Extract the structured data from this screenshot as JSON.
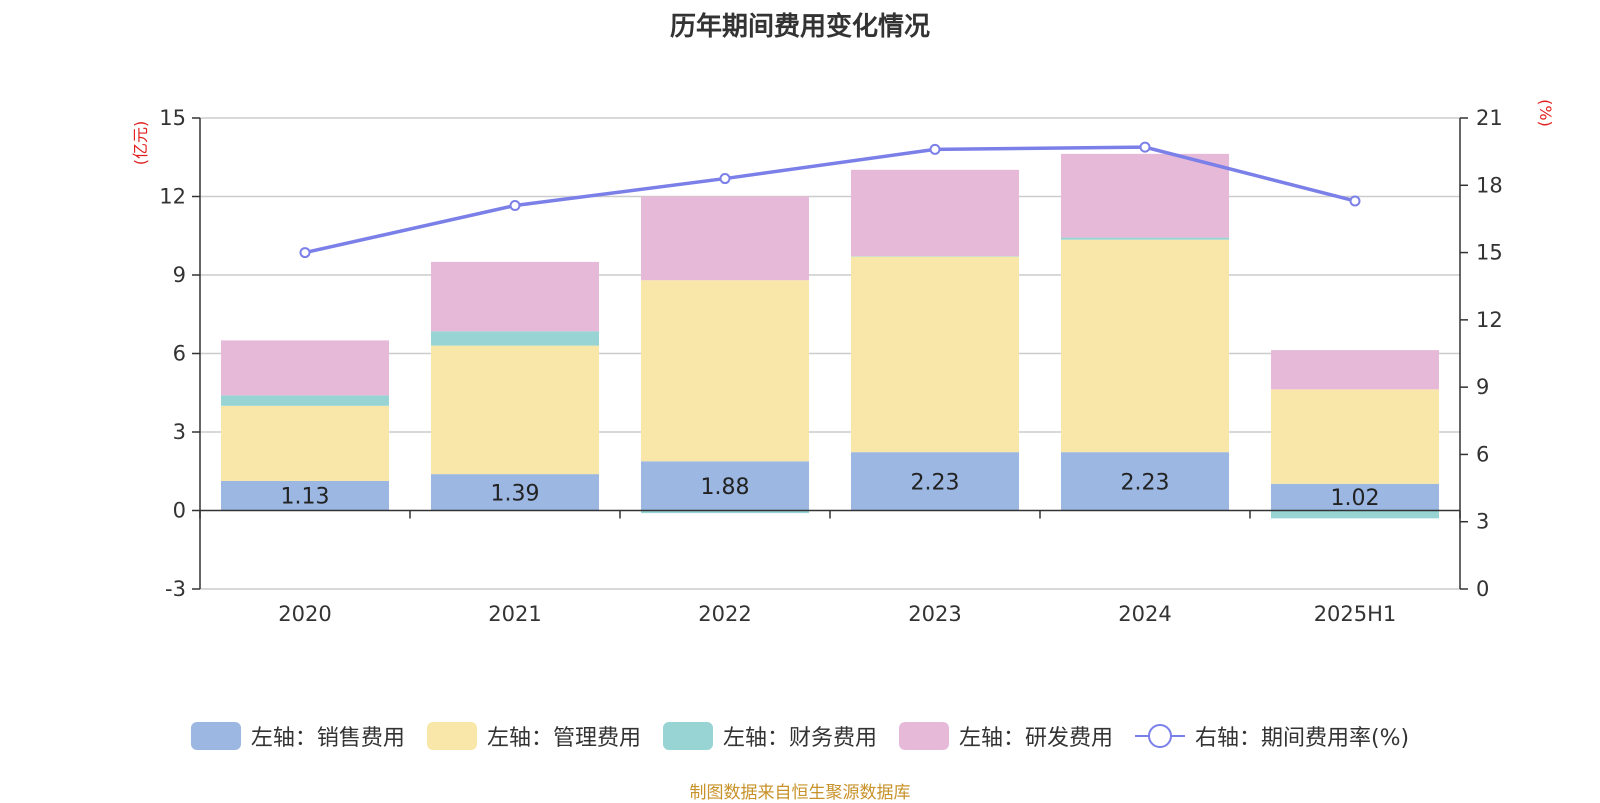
{
  "chart_data": {
    "type": "bar",
    "title": "历年期间费用变化情况",
    "categories": [
      "2020",
      "2021",
      "2022",
      "2023",
      "2024",
      "2025H1"
    ],
    "left_axis": {
      "unit": "(亿元)",
      "ylim": [
        -3,
        15
      ],
      "ticks": [
        -3,
        0,
        3,
        6,
        9,
        12,
        15
      ]
    },
    "right_axis": {
      "unit": "(%)",
      "ylim": [
        0,
        21
      ],
      "ticks": [
        0,
        3,
        6,
        9,
        12,
        15,
        18,
        21
      ]
    },
    "stacked": true,
    "grid": true,
    "legend_position": "bottom",
    "series": [
      {
        "name": "左轴：销售费用",
        "color": "#9bb7e2",
        "type": "bar",
        "axis": "left",
        "values": [
          1.13,
          1.39,
          1.88,
          2.23,
          2.23,
          1.02
        ],
        "show_labels": true
      },
      {
        "name": "左轴：管理费用",
        "color": "#f8e7a8",
        "type": "bar",
        "axis": "left",
        "values": [
          2.87,
          4.91,
          6.92,
          7.47,
          8.12,
          3.61
        ]
      },
      {
        "name": "左轴：财务费用",
        "color": "#98d4d4",
        "type": "bar",
        "axis": "left",
        "values": [
          0.4,
          0.55,
          -0.1,
          0.02,
          0.08,
          -0.3
        ]
      },
      {
        "name": "左轴：研发费用",
        "color": "#e7b9d9",
        "type": "bar",
        "axis": "left",
        "values": [
          2.1,
          2.65,
          3.2,
          3.3,
          3.2,
          1.5
        ]
      },
      {
        "name": "右轴：期间费用率(%)",
        "color": "#7b7fe8",
        "type": "line",
        "axis": "right",
        "values": [
          15.0,
          17.1,
          18.3,
          19.6,
          19.7,
          17.3
        ]
      }
    ]
  },
  "source_note": "制图数据来自恒生聚源数据库"
}
